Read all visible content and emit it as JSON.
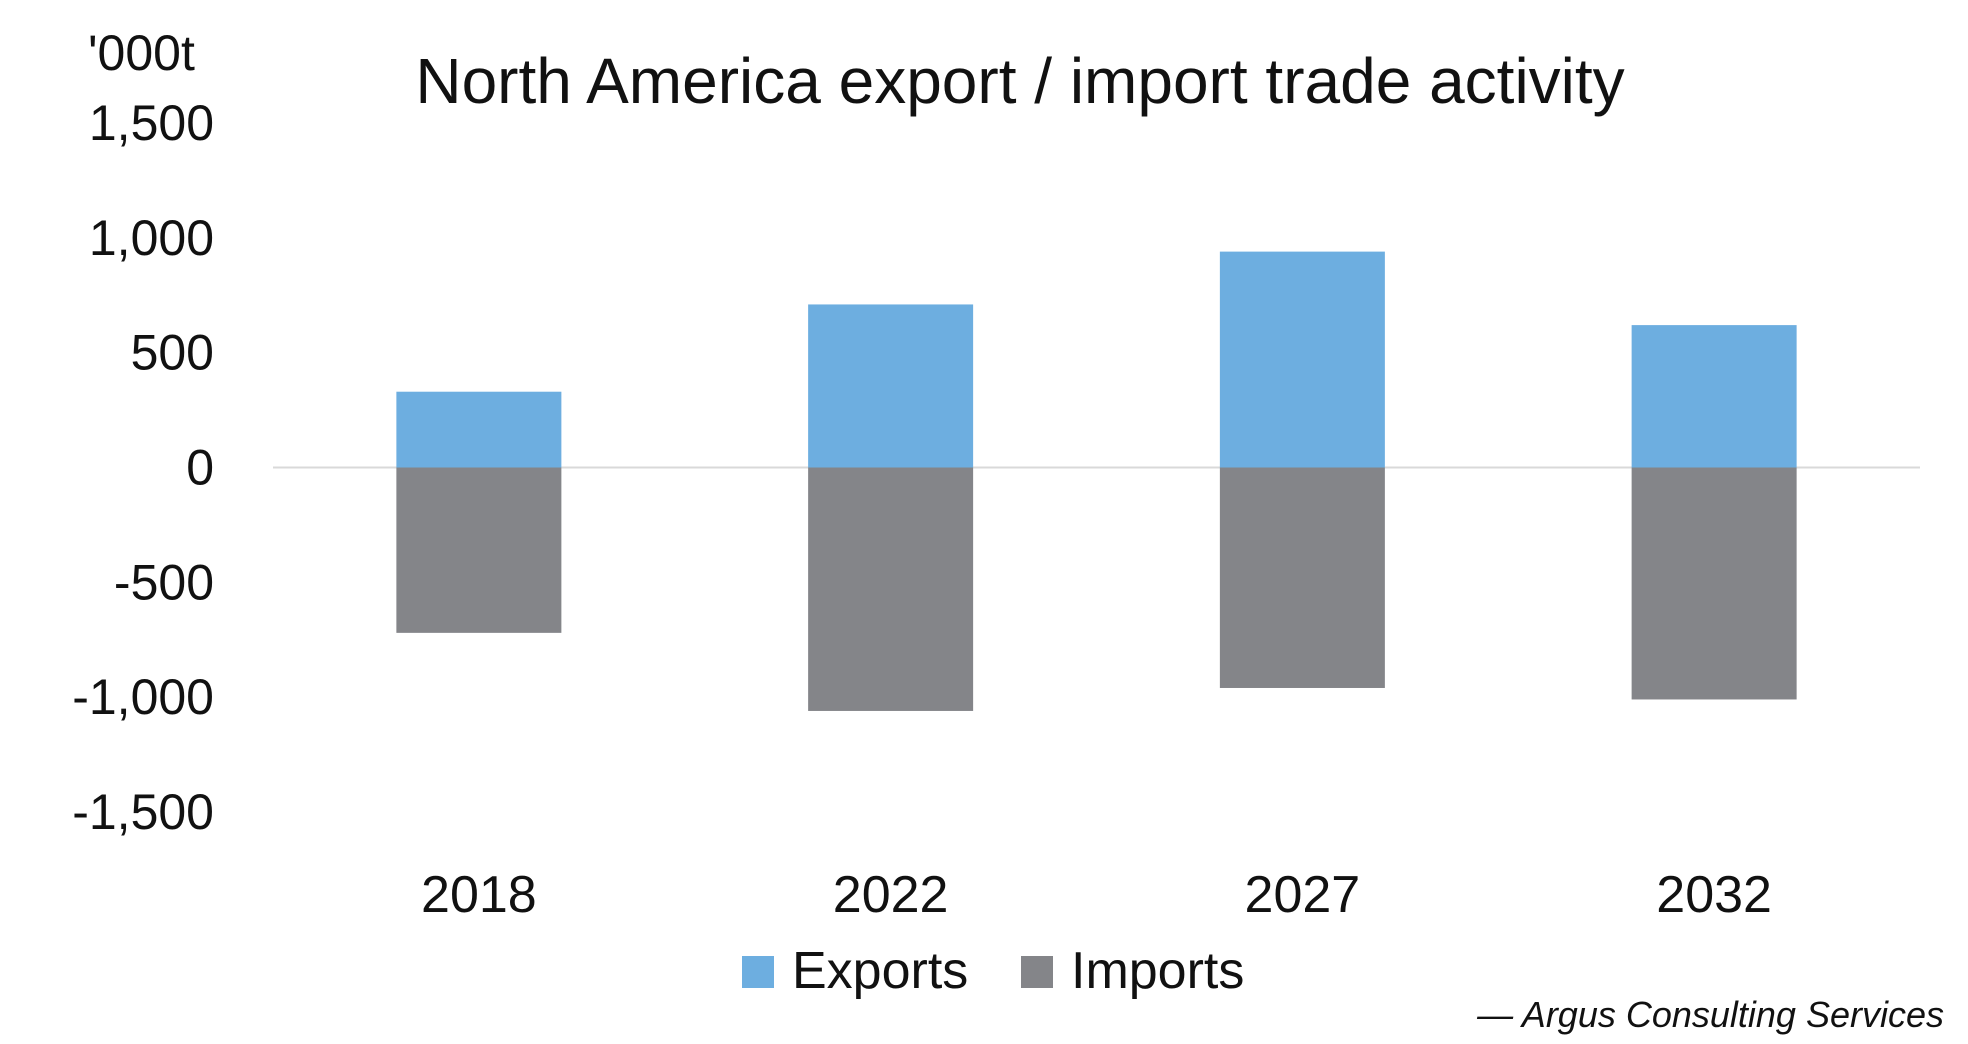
{
  "chart_data": {
    "type": "bar",
    "title": "North America export / import trade activity",
    "unit_label": "'000t",
    "categories": [
      "2018",
      "2022",
      "2027",
      "2032"
    ],
    "series": [
      {
        "name": "Exports",
        "values": [
          330,
          710,
          940,
          620
        ]
      },
      {
        "name": "Imports",
        "values": [
          -720,
          -1060,
          -960,
          -1010
        ]
      }
    ],
    "ylim": [
      -1500,
      1500
    ],
    "yticks": [
      1500,
      1000,
      500,
      0,
      -500,
      -1000,
      -1500
    ],
    "ytick_labels": [
      "1,500",
      "1,000",
      "500",
      "0",
      "-500",
      "-1,000",
      "-1,500"
    ],
    "stacked": true,
    "grid": false,
    "legend_position": "bottom-center",
    "colors": {
      "Exports": "#6daee0",
      "Imports": "#848589",
      "zero_line": "#d9d9d9"
    },
    "source": "— Argus Consulting Services"
  }
}
